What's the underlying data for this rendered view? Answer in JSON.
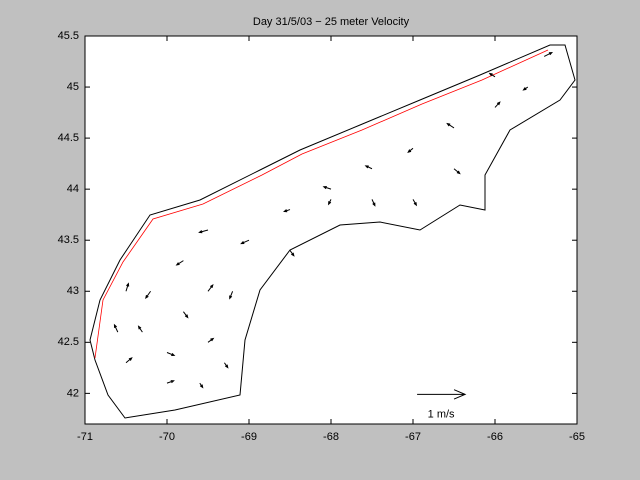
{
  "chart_data": {
    "type": "quiver",
    "title": "Day 31/5/03 − 25 meter Velocity",
    "xlim": [
      -71,
      -65
    ],
    "ylim": [
      41.7,
      45.5
    ],
    "xticks": [
      -71,
      -70,
      -69,
      -68,
      -67,
      -66,
      -65
    ],
    "yticks": [
      42,
      42.5,
      43,
      43.5,
      44,
      44.5,
      45,
      45.5
    ],
    "color": "#000000",
    "coast_color": "#ff0000",
    "x": [
      -70.5,
      -70.3,
      -70.0,
      -70.2,
      -70.5,
      -69.8,
      -69.5,
      -69.8,
      -69.5,
      -69.3,
      -69.2,
      -69.0,
      -68.5,
      -68.0,
      -68.5,
      -67.5,
      -67.0,
      -67.5,
      -66.5,
      -66.0,
      -66.5,
      -65.6,
      -65.4,
      -66.0,
      -67.0,
      -68.0,
      -69.5,
      -70.0,
      -69.6,
      -70.6
    ],
    "y": [
      42.3,
      42.6,
      42.4,
      43.0,
      43.0,
      43.3,
      43.6,
      42.8,
      42.5,
      42.3,
      43.0,
      43.5,
      43.8,
      44.0,
      43.4,
      44.2,
      44.4,
      43.9,
      44.6,
      44.8,
      44.2,
      45.0,
      45.3,
      45.1,
      43.9,
      43.9,
      43.0,
      42.1,
      42.1,
      42.6
    ],
    "u": [
      0.12,
      -0.08,
      0.15,
      -0.1,
      0.05,
      -0.14,
      -0.18,
      0.09,
      0.11,
      0.07,
      -0.06,
      -0.16,
      -0.12,
      -0.15,
      0.08,
      -0.13,
      -0.1,
      0.06,
      -0.14,
      0.1,
      0.12,
      -0.09,
      0.16,
      -0.11,
      0.07,
      -0.05,
      0.1,
      0.14,
      0.06,
      -0.07
    ],
    "v": [
      0.1,
      0.12,
      -0.06,
      -0.14,
      0.16,
      -0.09,
      -0.05,
      -0.12,
      0.08,
      -0.1,
      -0.15,
      -0.07,
      -0.04,
      0.05,
      -0.11,
      0.06,
      -0.08,
      -0.13,
      0.09,
      0.11,
      -0.1,
      -0.06,
      0.08,
      0.07,
      -0.12,
      -0.1,
      0.13,
      0.05,
      -0.09,
      0.15
    ],
    "reference": {
      "x": -66.95,
      "y": 41.99,
      "u": 1,
      "v": 0,
      "label": "1 m/s"
    }
  }
}
